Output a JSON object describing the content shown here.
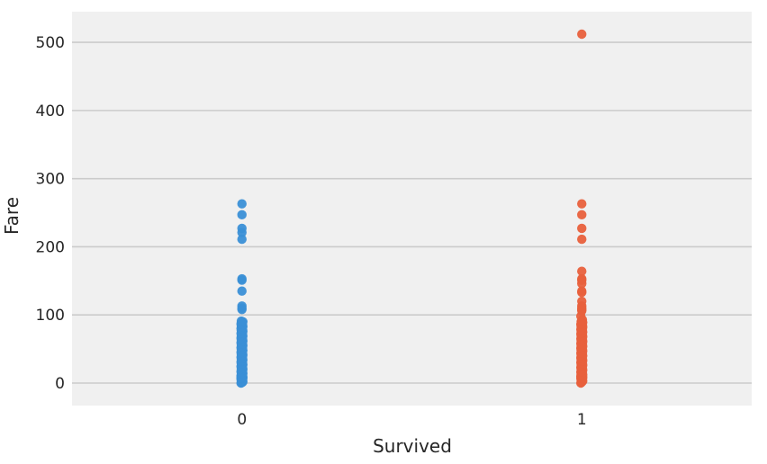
{
  "chart_data": {
    "type": "scatter",
    "title": "",
    "xlabel": "Survived",
    "ylabel": "Fare",
    "categories": [
      "0",
      "1"
    ],
    "yticks": [
      0,
      100,
      200,
      300,
      400,
      500
    ],
    "ylim": [
      -33,
      545
    ],
    "grid": "horizontal",
    "background": "#f0f0f0",
    "series": [
      {
        "category": "0",
        "color": "#3a8fd6",
        "values": [
          0,
          0.5,
          1,
          2,
          3,
          4,
          5,
          6,
          6.5,
          7,
          7.25,
          7.5,
          7.75,
          7.9,
          8,
          8.05,
          8.5,
          9,
          9.5,
          10,
          10.5,
          11,
          12,
          13,
          14,
          14.5,
          15,
          16,
          17,
          18,
          19,
          20,
          21,
          22,
          23,
          24,
          25,
          26,
          27,
          28,
          29,
          30,
          31,
          32,
          33,
          34,
          35,
          36,
          37,
          38,
          39,
          40,
          41,
          42,
          43,
          44,
          45,
          46,
          47,
          48,
          49,
          50,
          51,
          52,
          53,
          54,
          55,
          56,
          57,
          58,
          59,
          60,
          61,
          62,
          63,
          64,
          65,
          66,
          67,
          68,
          69,
          70,
          71,
          72,
          73,
          74,
          75,
          76,
          77,
          78,
          79,
          80,
          81,
          82,
          83,
          84,
          85,
          86,
          87,
          88,
          89,
          90,
          91,
          108,
          110,
          113,
          135,
          151,
          153,
          211,
          221,
          227,
          247,
          263
        ]
      },
      {
        "category": "1",
        "color": "#e8603c",
        "values": [
          0,
          1,
          2,
          3,
          4,
          5,
          6,
          7,
          7.25,
          7.75,
          8,
          8.5,
          9,
          9.5,
          10,
          10.5,
          11,
          12,
          13,
          14,
          15,
          16,
          17,
          18,
          19,
          20,
          21,
          22,
          23,
          24,
          25,
          26,
          27,
          28,
          29,
          30,
          31,
          32,
          33,
          34,
          35,
          36,
          37,
          38,
          39,
          40,
          41,
          42,
          43,
          44,
          45,
          46,
          47,
          48,
          49,
          50,
          51,
          52,
          53,
          54,
          55,
          56,
          57,
          58,
          59,
          60,
          61,
          62,
          63,
          64,
          65,
          66,
          67,
          68,
          69,
          70,
          71,
          72,
          73,
          74,
          75,
          76,
          77,
          78,
          79,
          80,
          81,
          82,
          83,
          84,
          85,
          86,
          87,
          88,
          89,
          90,
          91,
          93,
          98,
          106,
          108,
          110,
          113,
          120,
          133,
          135,
          146,
          151,
          153,
          164,
          211,
          227,
          247,
          263,
          512
        ]
      }
    ]
  }
}
